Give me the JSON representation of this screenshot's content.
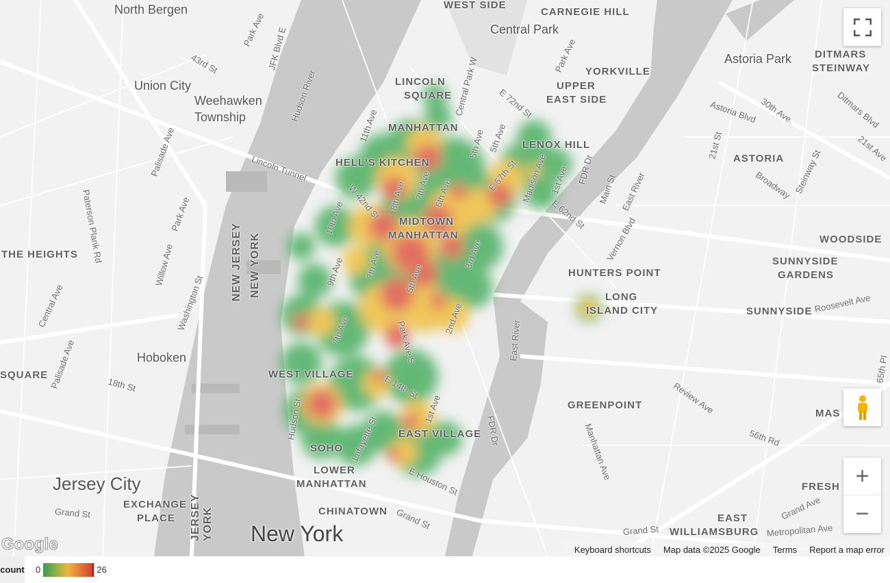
{
  "map": {
    "areas": [
      "North Bergen",
      "Union City",
      "Weehawken",
      "Township",
      "Hoboken",
      "Jersey City",
      "New York",
      "MANHATTAN",
      "HELL'S KITCHEN",
      "MIDTOWN",
      "MANHATTAN",
      "LINCOLN",
      "SQUARE",
      "UPPER",
      "EAST SIDE",
      "YORKVILLE",
      "CARNEGIE HILL",
      "LENOX HILL",
      "Central Park",
      "Astoria Park",
      "DITMARS",
      "STEINWAY",
      "ASTORIA",
      "WOODSIDE",
      "SUNNYSIDE",
      "GARDENS",
      "HUNTERS POINT",
      "LONG",
      "ISLAND CITY",
      "SUNNYSIDE",
      "GREENPOINT",
      "EAST",
      "WILLIAMSBURG",
      "WEST VILLAGE",
      "EAST VILLAGE",
      "SOHO",
      "LOWER",
      "MANHATTAN",
      "CHINATOWN",
      "EXCHANGE",
      "PLACE",
      "THE HEIGHTS",
      "SQUARE",
      "NEW JERSEY",
      "NEW YORK",
      "JERSEY",
      "YORK",
      "FRESH",
      "MAS",
      "WEST SIDE"
    ],
    "streets": [
      "Park Ave",
      "43rd St",
      "JFK Blvd E",
      "Hudson River",
      "Lincoln Tunnel",
      "Palisade Ave",
      "Paterson Plank Rd",
      "Park Ave",
      "Willow Ave",
      "Washington St",
      "Central Ave",
      "Palisade Ave",
      "18th St",
      "Grand St",
      "11th Ave",
      "10th Ave",
      "9th Ave",
      "8th Ave",
      "7th Ave",
      "6th Ave",
      "5th Ave",
      "W 42nd St",
      "7th Ave",
      "7th Ave",
      "5th Ave",
      "Park Ave S",
      "2nd Ave",
      "3rd Ave",
      "E 14th St",
      "Hudson St",
      "Lafayette St",
      "1st Ave",
      "E Houston St",
      "Grand St",
      "FDR Dr",
      "East River",
      "FDR Dr",
      "Main St",
      "East River",
      "Vernon Blvd",
      "Central Park W",
      "5th Ave",
      "Madison Ave",
      "E 72nd St",
      "E 57th St",
      "E 62nd St",
      "1st Ave",
      "Park Ave",
      "Astoria Blvd",
      "21st St",
      "30th Ave.",
      "Broadway",
      "Steinway St",
      "Ditmars Blvd",
      "21st Ave",
      "Roosevelt Ave",
      "Review Ave",
      "56th Rd",
      "Manhattan Ave",
      "Grand Ave",
      "Metropolitan Ave",
      "Grand St",
      "65th Pl"
    ]
  },
  "controls": {
    "fullscreen_icon": "fullscreen-icon",
    "pegman_icon": "street-view-pegman-icon",
    "zoom_in": "+",
    "zoom_out": "−"
  },
  "attribution": {
    "logo": "Google",
    "keyboard": "Keyboard shortcuts",
    "map_data": "Map data ©2025 Google",
    "terms": "Terms",
    "report": "Report a map error"
  },
  "legend": {
    "title": "count",
    "min": "0",
    "max": "26",
    "colors": [
      "#3c9a52",
      "#eeb63d",
      "#cc4333"
    ]
  },
  "heatmap": {
    "colors": {
      "low": "#4caf60",
      "mid": "#f0c040",
      "high": "#e05a4a"
    }
  }
}
